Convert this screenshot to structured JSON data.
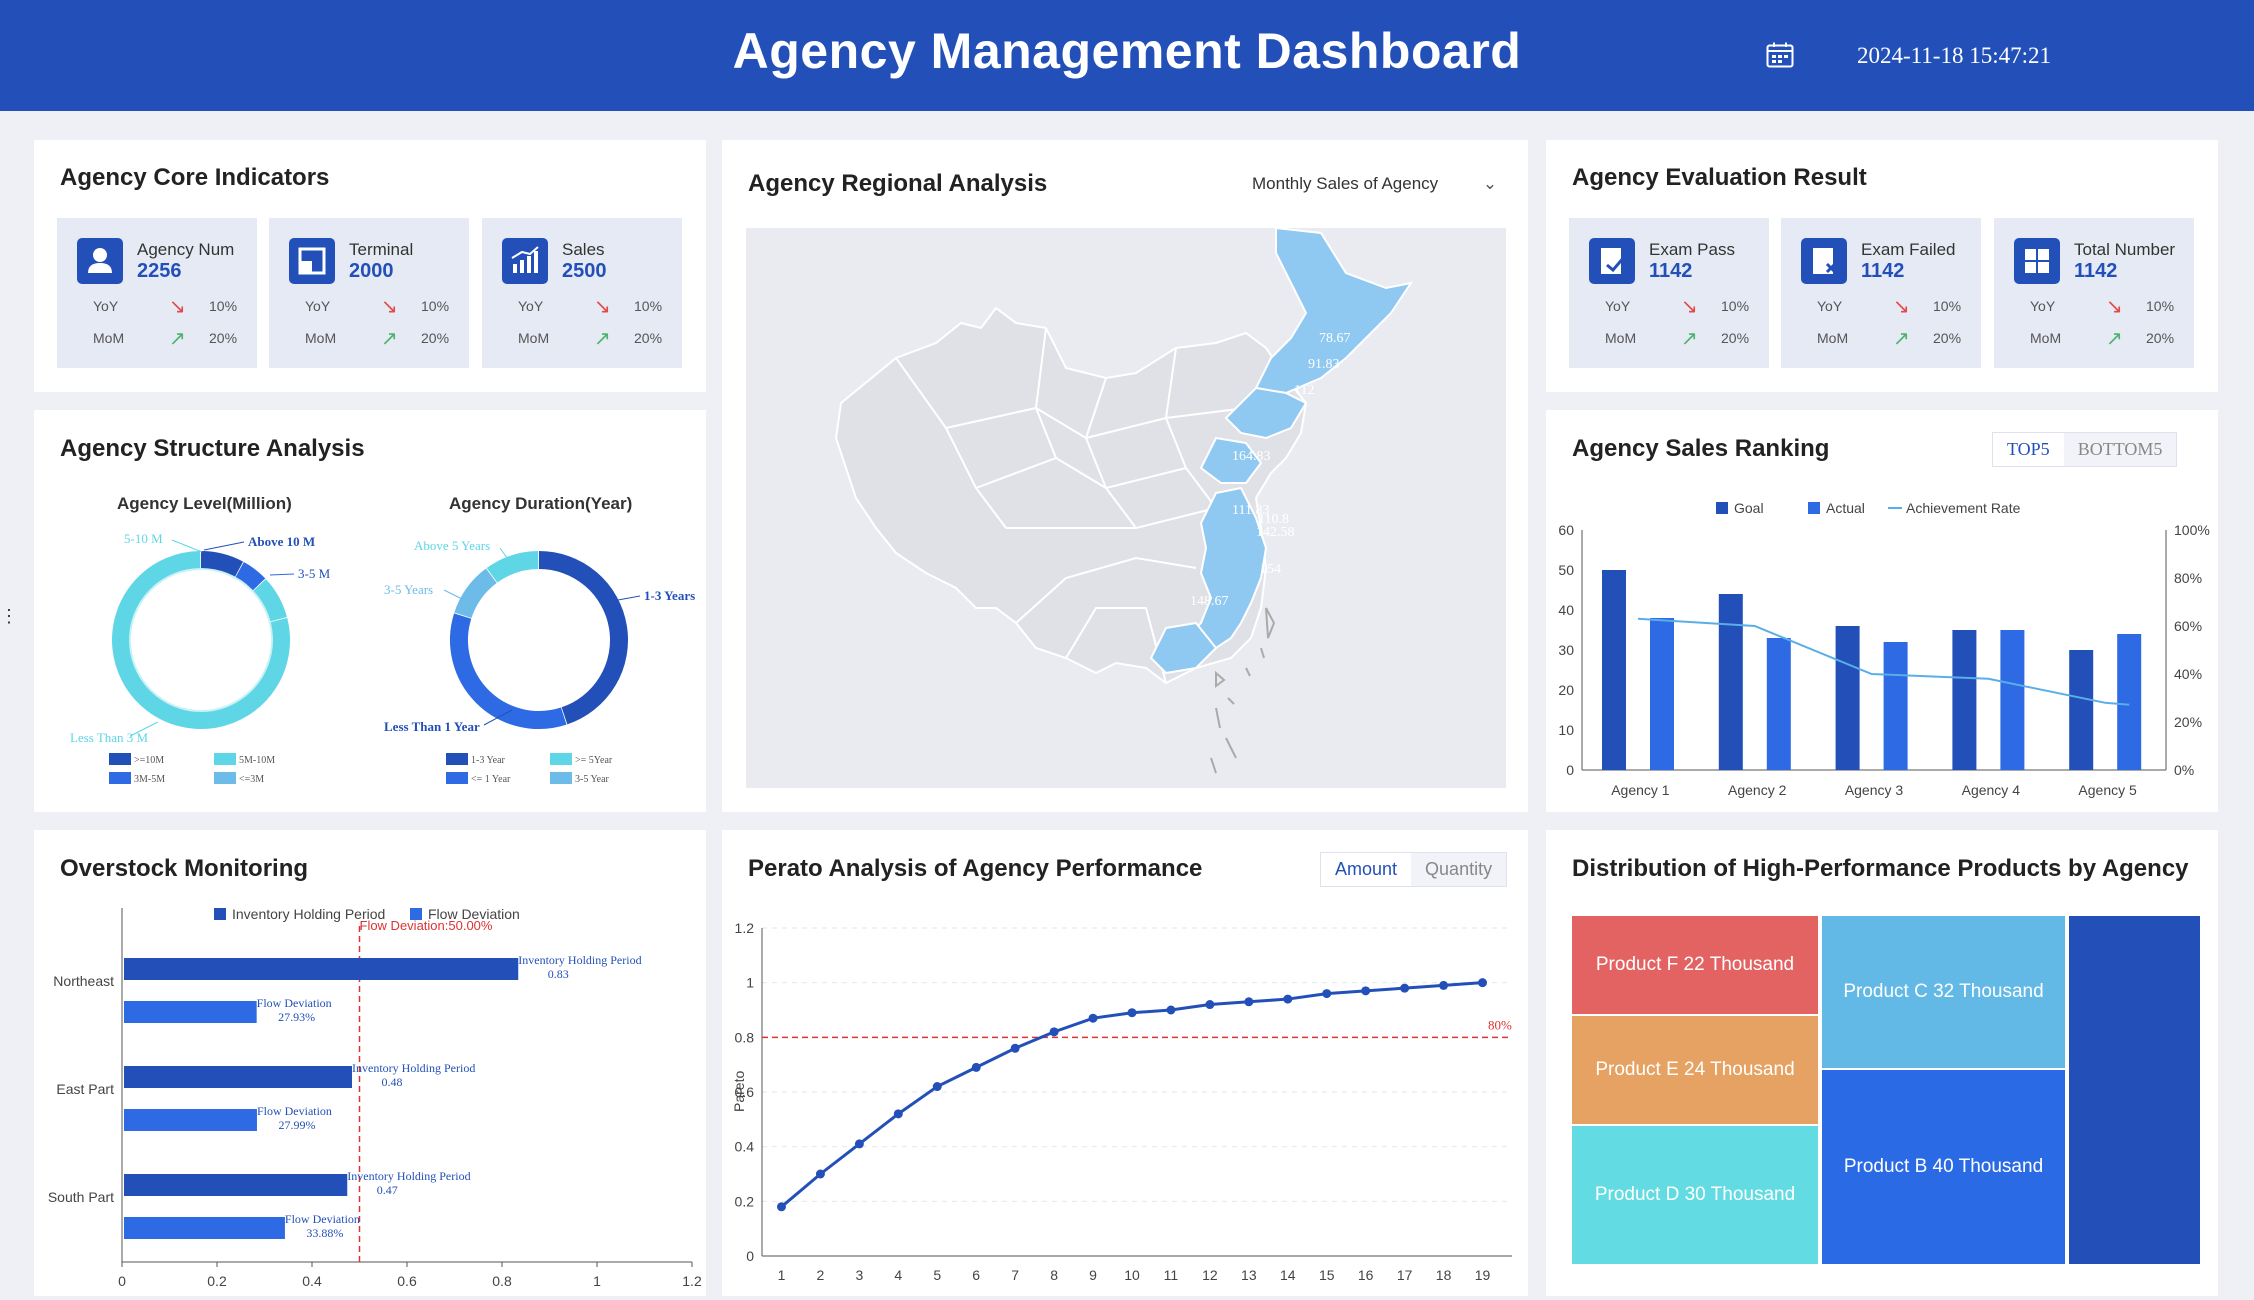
{
  "header": {
    "title": "Agency Management Dashboard",
    "datetime": "2024-11-18 15:47:21",
    "calendar_icon": "calendar-icon"
  },
  "core": {
    "title": "Agency Core Indicators",
    "cards": [
      {
        "label": "Agency Num",
        "value": "2256",
        "icon": "person-icon",
        "yoy_label": "YoY",
        "yoy": "10%",
        "mom_label": "MoM",
        "mom": "20%"
      },
      {
        "label": "Terminal",
        "value": "2000",
        "icon": "terminal-icon",
        "yoy_label": "YoY",
        "yoy": "10%",
        "mom_label": "MoM",
        "mom": "20%"
      },
      {
        "label": "Sales",
        "value": "2500",
        "icon": "bar-chart-icon",
        "yoy_label": "YoY",
        "yoy": "10%",
        "mom_label": "MoM",
        "mom": "20%"
      }
    ]
  },
  "regional": {
    "title": "Agency Regional Analysis",
    "dropdown": "Monthly Sales of Agency",
    "map_values": [
      "78.67",
      "91.83",
      "112",
      "164.83",
      "111.83",
      "110.8",
      "142.58",
      "154",
      "148.67"
    ]
  },
  "evaluation": {
    "title": "Agency Evaluation Result",
    "cards": [
      {
        "label": "Exam Pass",
        "value": "1142",
        "icon": "check-doc-icon",
        "yoy_label": "YoY",
        "yoy": "10%",
        "mom_label": "MoM",
        "mom": "20%"
      },
      {
        "label": "Exam Failed",
        "value": "1142",
        "icon": "fail-doc-icon",
        "yoy_label": "YoY",
        "yoy": "10%",
        "mom_label": "MoM",
        "mom": "20%"
      },
      {
        "label": "Total Number",
        "value": "1142",
        "icon": "grid-icon",
        "yoy_label": "YoY",
        "yoy": "10%",
        "mom_label": "MoM",
        "mom": "20%"
      }
    ]
  },
  "structure": {
    "title": "Agency Structure Analysis",
    "level_title": "Agency Level(Million)",
    "duration_title": "Agency Duration(Year)",
    "level_labels": [
      "Above 10 M",
      "3-5 M",
      "5-10 M",
      "Less Than 3 M"
    ],
    "level_legend": [
      ">=10M",
      "5M-10M",
      "3M-5M",
      "<=3M"
    ],
    "duration_labels": [
      "1-3 Years",
      "Less Than 1 Year",
      "3-5 Years",
      "Above 5 Years"
    ],
    "duration_legend": [
      "1-3 Year",
      ">= 5Year",
      "<= 1 Year",
      "3-5 Year"
    ],
    "colors": {
      "dark": "#2350b8",
      "mid": "#2d6ae3",
      "light": "#5fd6e6",
      "pale": "#6cbbe8"
    }
  },
  "ranking": {
    "title": "Agency Sales Ranking",
    "tabs": [
      "TOP5",
      "BOTTOM5"
    ],
    "legend": [
      "Goal",
      "Actual",
      "Achievement Rate"
    ]
  },
  "overstock": {
    "title": "Overstock Monitoring",
    "legend": [
      "Inventory Holding Period",
      "Flow Deviation"
    ],
    "threshold_label": "Flow Deviation:50.00%",
    "bar_label_a": "Inventory Holding Period",
    "bar_label_b": "Flow Deviation"
  },
  "pareto": {
    "title": "Perato Analysis of Agency Performance",
    "tabs": [
      "Amount",
      "Quantity"
    ],
    "ylabel": "Pareto",
    "threshold_label": "80%"
  },
  "distribution": {
    "title": "Distribution of High-Performance Products by Agency",
    "products": [
      {
        "label": "Product F 22 Thousand",
        "color": "#e36363"
      },
      {
        "label": "Product C 32 Thousand",
        "color": "#62b9e6"
      },
      {
        "label": "Product E 24 Thousand",
        "color": "#e5a263"
      },
      {
        "label": "Product B 40 Thousand",
        "color": "#2a6be5"
      },
      {
        "label": "Product D 30 Thousand",
        "color": "#62dce2"
      },
      {
        "label": "",
        "color": "#2350b8"
      }
    ]
  },
  "chart_data": [
    {
      "type": "pie",
      "title": "Agency Level(Million)",
      "categories": [
        "Above 10 M",
        "3-5 M",
        "5-10 M",
        "Less Than 3 M"
      ],
      "values": [
        8,
        5,
        8,
        79
      ]
    },
    {
      "type": "pie",
      "title": "Agency Duration(Year)",
      "categories": [
        "1-3 Years",
        "Less Than 1 Year",
        "3-5 Years",
        "Above 5 Years"
      ],
      "values": [
        45,
        35,
        10,
        10
      ]
    },
    {
      "type": "bar",
      "title": "Agency Sales Ranking",
      "categories": [
        "Agency 1",
        "Agency 2",
        "Agency 3",
        "Agency 4",
        "Agency 5"
      ],
      "series": [
        {
          "name": "Goal",
          "values": [
            50,
            44,
            36,
            35,
            30
          ]
        },
        {
          "name": "Actual",
          "values": [
            38,
            33,
            32,
            35,
            34
          ]
        },
        {
          "name": "Achievement Rate",
          "values": [
            63,
            60,
            40,
            38,
            28
          ]
        }
      ],
      "ylim": [
        0,
        60
      ],
      "y2lim": [
        0,
        100
      ],
      "y2unit": "%"
    },
    {
      "type": "bar",
      "orientation": "horizontal",
      "title": "Overstock Monitoring",
      "categories": [
        "Northeast",
        "East Part",
        "South Part"
      ],
      "series": [
        {
          "name": "Inventory Holding Period",
          "values": [
            0.83,
            0.48,
            0.47
          ],
          "labels": [
            "0.83",
            "0.48",
            "0.47"
          ]
        },
        {
          "name": "Flow Deviation",
          "values": [
            0.2793,
            0.2799,
            0.3388
          ],
          "labels": [
            "27.93%",
            "27.99%",
            "33.88%"
          ]
        }
      ],
      "threshold": 0.5,
      "xlim": [
        0,
        1.2
      ],
      "xticks": [
        "0",
        "0.2",
        "0.4",
        "0.6",
        "0.8",
        "1",
        "1.2"
      ]
    },
    {
      "type": "line",
      "title": "Perato Analysis of Agency Performance",
      "ylabel": "Pareto",
      "x": [
        1,
        2,
        3,
        4,
        5,
        6,
        7,
        8,
        9,
        10,
        11,
        12,
        13,
        14,
        15,
        16,
        17,
        18,
        19
      ],
      "values": [
        0.18,
        0.3,
        0.41,
        0.52,
        0.62,
        0.69,
        0.76,
        0.82,
        0.87,
        0.89,
        0.9,
        0.92,
        0.93,
        0.94,
        0.96,
        0.97,
        0.98,
        0.99,
        1.0
      ],
      "threshold": 0.8,
      "ylim": [
        0,
        1.2
      ],
      "yticks": [
        "0",
        "0.2",
        "0.4",
        "0.6",
        "0.8",
        "1",
        "1.2"
      ]
    },
    {
      "type": "treemap",
      "title": "Distribution of High-Performance Products by Agency",
      "categories": [
        "Product F",
        "Product C",
        "Product E",
        "Product B",
        "Product D"
      ],
      "values": [
        22,
        32,
        24,
        40,
        30
      ],
      "unit": "Thousand"
    }
  ]
}
